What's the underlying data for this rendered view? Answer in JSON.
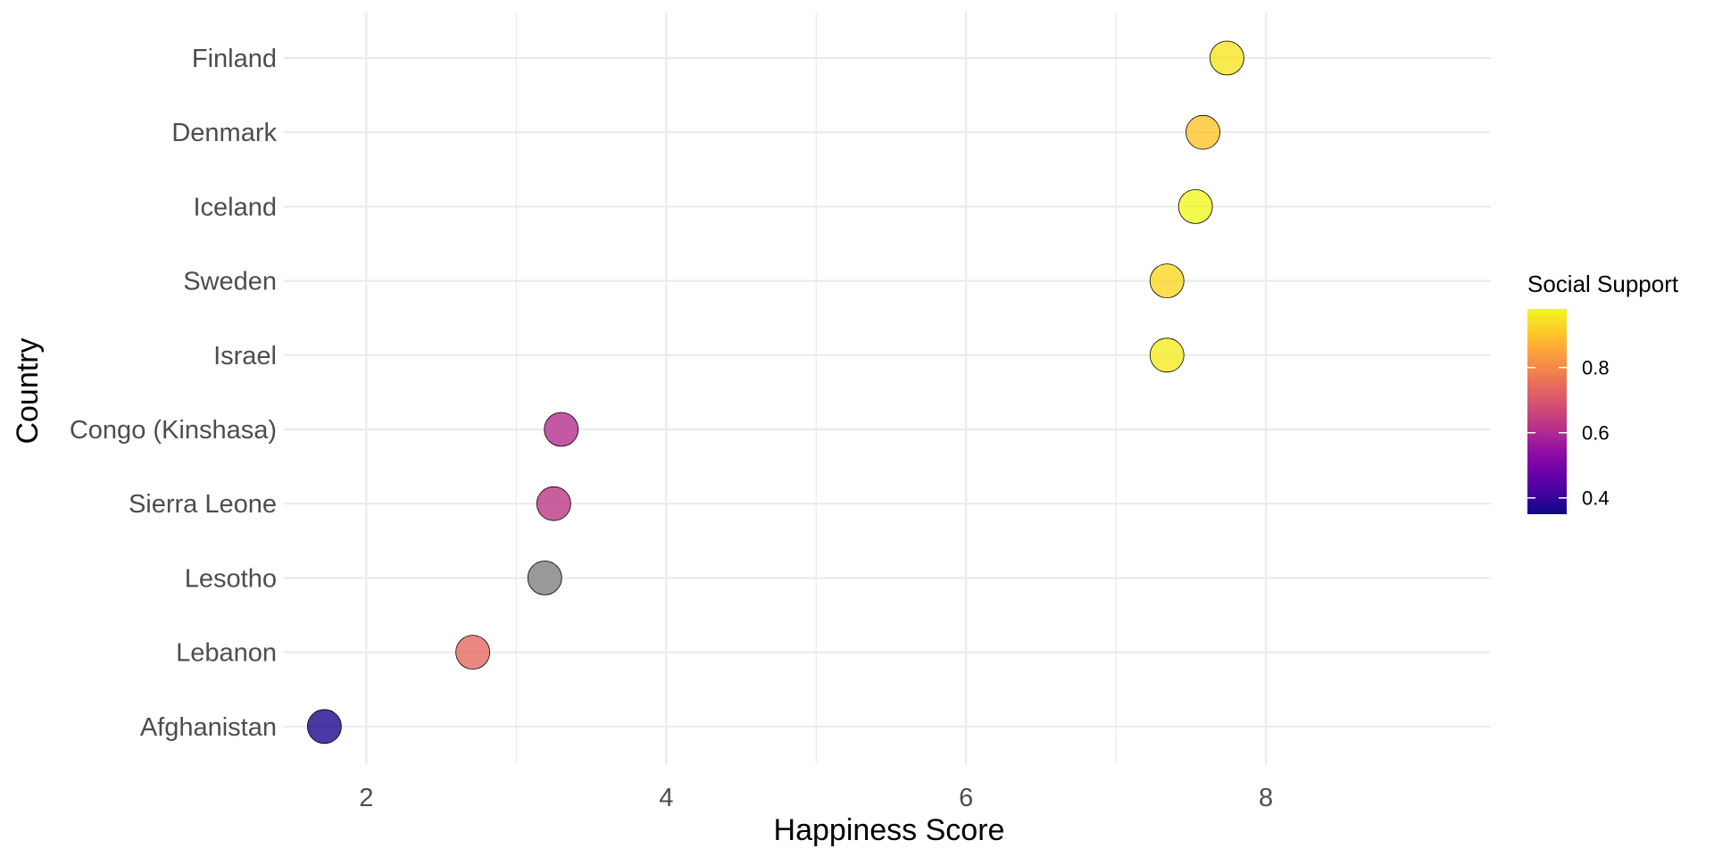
{
  "chart_data": {
    "type": "scatter",
    "xlabel": "Happiness Score",
    "ylabel": "Country",
    "xlim": [
      1.45,
      9.5
    ],
    "x_ticks": [
      2,
      4,
      6,
      8
    ],
    "x_minor_ticks": [
      3,
      5,
      7
    ],
    "grid": true,
    "categories": [
      "Afghanistan",
      "Lebanon",
      "Lesotho",
      "Sierra Leone",
      "Congo (Kinshasa)",
      "Israel",
      "Sweden",
      "Iceland",
      "Denmark",
      "Finland"
    ],
    "points": [
      {
        "country": "Finland",
        "x": 7.74,
        "social_support": 0.95
      },
      {
        "country": "Denmark",
        "x": 7.58,
        "social_support": 0.9
      },
      {
        "country": "Iceland",
        "x": 7.53,
        "social_support": 0.98
      },
      {
        "country": "Sweden",
        "x": 7.34,
        "social_support": 0.93
      },
      {
        "country": "Israel",
        "x": 7.34,
        "social_support": 0.96
      },
      {
        "country": "Congo (Kinshasa)",
        "x": 3.3,
        "social_support": 0.61
      },
      {
        "country": "Sierra Leone",
        "x": 3.25,
        "social_support": 0.63
      },
      {
        "country": "Lesotho",
        "x": 3.19,
        "social_support": null
      },
      {
        "country": "Lebanon",
        "x": 2.71,
        "social_support": 0.74
      },
      {
        "country": "Afghanistan",
        "x": 1.72,
        "social_support": 0.37
      }
    ],
    "legend": {
      "title": "Social Support",
      "placement": "right",
      "ticks": [
        0.4,
        0.6,
        0.8
      ],
      "range": [
        0.35,
        0.98
      ],
      "palette": "plasma",
      "na_color": "#999999"
    }
  }
}
